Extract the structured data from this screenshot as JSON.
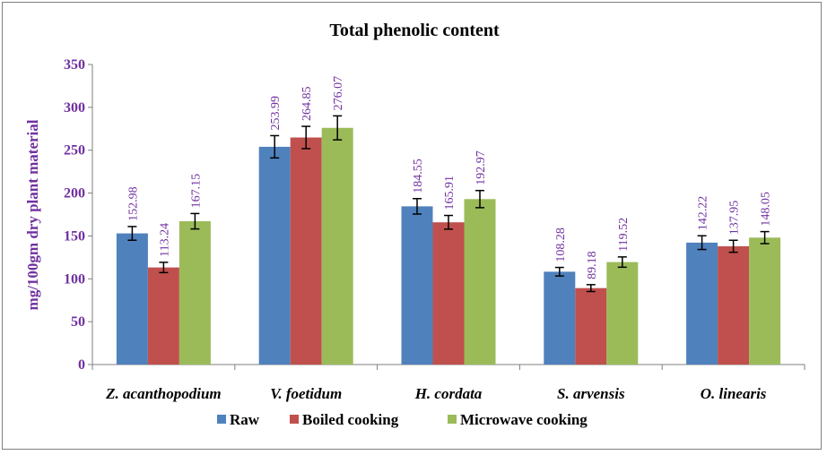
{
  "chart_data": {
    "type": "bar",
    "title": "Total phenolic content",
    "ylabel": "mg/100gm dry plant material",
    "xlabel": "",
    "ylim": [
      0,
      350
    ],
    "yticks": [
      0,
      50,
      100,
      150,
      200,
      250,
      300,
      350
    ],
    "categories": [
      "Z. acanthopodium",
      "V. foetidum",
      "H. cordata",
      "S. arvensis",
      "O. linearis"
    ],
    "series": [
      {
        "name": "Raw",
        "color": "#4f81bd",
        "values": [
          152.98,
          253.99,
          184.55,
          108.28,
          142.22
        ],
        "errors": [
          8,
          13,
          9,
          5,
          8
        ]
      },
      {
        "name": "Boiled cooking",
        "color": "#c0504d",
        "values": [
          113.24,
          264.85,
          165.91,
          89.18,
          137.95
        ],
        "errors": [
          6,
          13,
          8,
          4,
          7
        ]
      },
      {
        "name": "Microwave cooking",
        "color": "#9bbb59",
        "values": [
          167.15,
          276.07,
          192.97,
          119.52,
          148.05
        ],
        "errors": [
          9,
          14,
          10,
          6,
          7
        ]
      }
    ],
    "data_labels": [
      [
        "152.98",
        "253.99",
        "184.55",
        "108.28",
        "142.22"
      ],
      [
        "113.24",
        "264.85",
        "165.91",
        "89.18",
        "137.95"
      ],
      [
        "167.15",
        "276.07",
        "192.97",
        "119.52",
        "148.05"
      ]
    ],
    "legend_position": "bottom",
    "grid": false
  }
}
